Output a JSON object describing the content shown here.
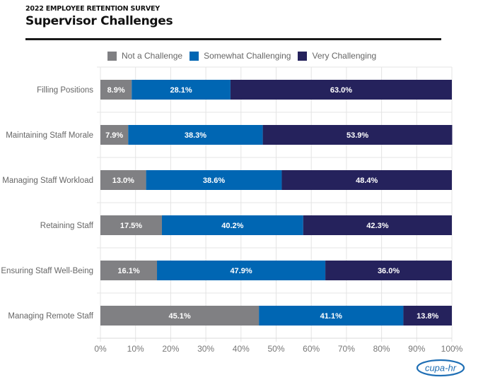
{
  "header": {
    "kicker": "2022 EMPLOYEE RETENTION SURVEY",
    "title": "Supervisor Challenges"
  },
  "logo": {
    "text": "cupa-hr",
    "icon": "cupa-hr-logo"
  },
  "chart_data": {
    "type": "bar",
    "orientation": "horizontal",
    "stacked": true,
    "title": "Supervisor Challenges",
    "xlabel": "",
    "ylabel": "",
    "xlim": [
      0,
      100
    ],
    "x_ticks": [
      "0%",
      "10%",
      "20%",
      "30%",
      "40%",
      "50%",
      "60%",
      "70%",
      "80%",
      "90%",
      "100%"
    ],
    "grid": true,
    "legend_position": "top",
    "categories": [
      "Filling Positions",
      "Maintaining Staff Morale",
      "Managing Staff Workload",
      "Retaining Staff",
      "Ensuring Staff Well-Being",
      "Managing Remote Staff"
    ],
    "series": [
      {
        "name": "Not a Challenge",
        "color": "#808083",
        "values": [
          8.9,
          7.9,
          13.0,
          17.5,
          16.1,
          45.1
        ]
      },
      {
        "name": "Somewhat Challenging",
        "color": "#0066b3",
        "values": [
          28.1,
          38.3,
          38.6,
          40.2,
          47.9,
          41.1
        ]
      },
      {
        "name": "Very Challenging",
        "color": "#25225c",
        "values": [
          63.0,
          53.9,
          48.4,
          42.3,
          36.0,
          13.8
        ]
      }
    ]
  }
}
